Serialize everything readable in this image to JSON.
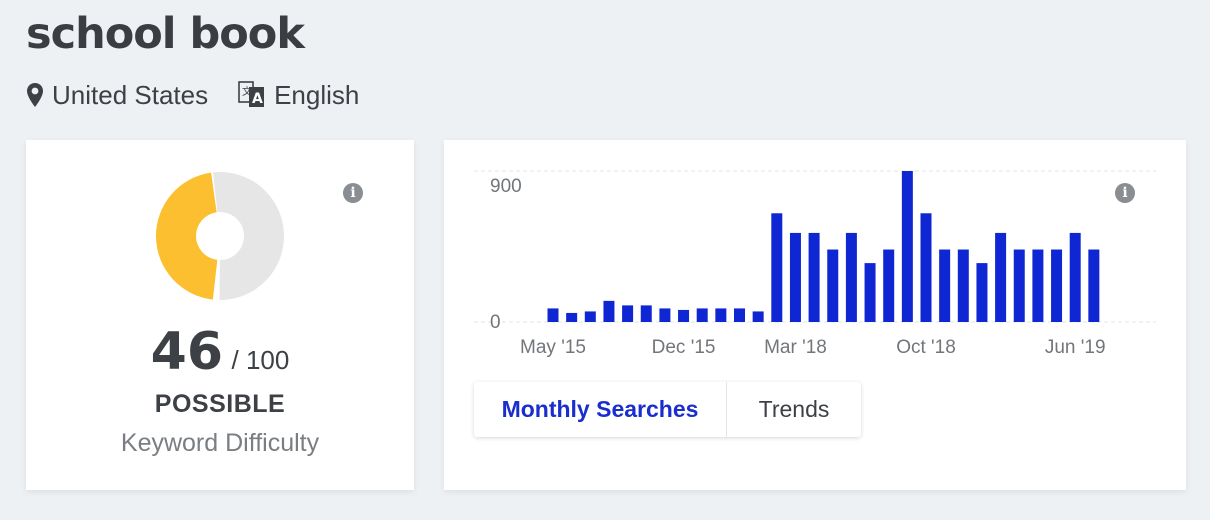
{
  "keyword": "school book",
  "location": {
    "icon": "map-pin-icon",
    "label": "United States"
  },
  "language": {
    "icon": "translate-icon",
    "label": "English"
  },
  "difficulty": {
    "score": "46",
    "max": "/ 100",
    "rating": "POSSIBLE",
    "label": "Keyword Difficulty",
    "fraction": 0.46,
    "fill_color": "#fbbf2f",
    "track_color": "#e6e6e6",
    "info_icon": "info-icon",
    "info_glyph": "i"
  },
  "volume": {
    "info_icon": "info-icon",
    "info_glyph": "i",
    "bar_color": "#0f27d2",
    "tabs": [
      {
        "label": "Monthly Searches"
      },
      {
        "label": "Trends"
      }
    ]
  },
  "chart_data": {
    "type": "bar",
    "categories": [
      "May '15",
      "Jun '15",
      "Jul '15",
      "Aug '15",
      "Sep '15",
      "Oct '15",
      "Nov '15",
      "Dec '15",
      "Jan '16",
      "Feb '16",
      "Mar '16",
      "Apr '16",
      "Feb '18",
      "Mar '18",
      "Apr '18",
      "May '18",
      "Jun '18",
      "Jul '18",
      "Aug '18",
      "Sep '18",
      "Oct '18",
      "Nov '18",
      "Dec '18",
      "Jan '19",
      "Feb '19",
      "Mar '19",
      "Apr '19",
      "May '19",
      "Jun '19",
      "Jul '19"
    ],
    "values": [
      90,
      60,
      70,
      140,
      110,
      110,
      90,
      80,
      90,
      90,
      90,
      70,
      720,
      590,
      590,
      480,
      590,
      390,
      480,
      1000,
      720,
      480,
      480,
      390,
      590,
      480,
      480,
      480,
      590,
      480
    ],
    "xtick_labels": [
      "May '15",
      "Dec '15",
      "Mar '18",
      "Oct '18",
      "Jun '19"
    ],
    "yticks": [
      0,
      900
    ],
    "ylim": [
      0,
      1000
    ],
    "grid": true,
    "title": "",
    "xlabel": "",
    "ylabel": ""
  }
}
